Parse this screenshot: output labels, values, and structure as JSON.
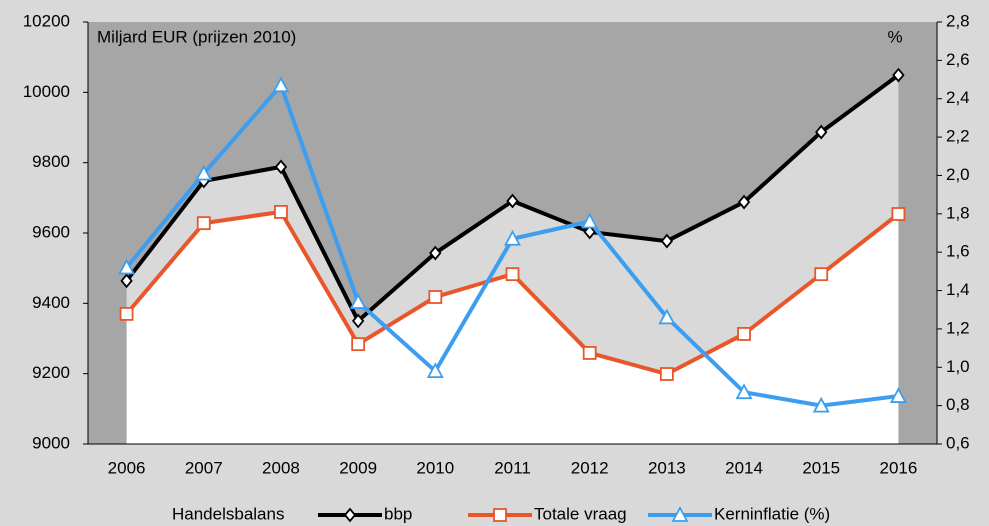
{
  "chart_data": {
    "type": "line",
    "y_label": "Miljard EUR (prijzen 2010)",
    "y2_label": "%",
    "categories": [
      "2006",
      "2007",
      "2008",
      "2009",
      "2010",
      "2011",
      "2012",
      "2013",
      "2014",
      "2015",
      "2016"
    ],
    "series": [
      {
        "name": "Handelsbalans",
        "kind": "area",
        "color": "#d9d9d9",
        "values": [
          94,
          120,
          128,
          66,
          125,
          208,
          344,
          378,
          375,
          404,
          395
        ]
      },
      {
        "name": "bbp",
        "kind": "line",
        "color": "#000000",
        "marker": "diamond",
        "values": [
          9464,
          9748,
          9788,
          9350,
          9543,
          9691,
          9603,
          9577,
          9688,
          9887,
          10049
        ]
      },
      {
        "name": "Totale vraag",
        "kind": "line",
        "color": "#e8562a",
        "marker": "square",
        "fill_below": "#ffffff",
        "values": [
          9370,
          9628,
          9660,
          9284,
          9418,
          9483,
          9259,
          9199,
          9313,
          9483,
          9654
        ]
      },
      {
        "name": "Kerninflatie (%)",
        "kind": "line",
        "color": "#3d9ef0",
        "marker": "triangle",
        "axis": "y2",
        "values": [
          1.52,
          2.01,
          2.47,
          1.34,
          0.98,
          1.67,
          1.76,
          1.26,
          0.87,
          0.8,
          0.85
        ]
      }
    ],
    "ylim": [
      9000,
      10200
    ],
    "yticks": [
      9000,
      9200,
      9400,
      9600,
      9800,
      10000,
      10200
    ],
    "y2lim": [
      0.6,
      2.8
    ],
    "y2ticks": [
      {
        "value": 0.6,
        "label": "0,6"
      },
      {
        "value": 0.8,
        "label": "0,8"
      },
      {
        "value": 1.0,
        "label": "1,0"
      },
      {
        "value": 1.2,
        "label": "1,2"
      },
      {
        "value": 1.4,
        "label": "1,4"
      },
      {
        "value": 1.6,
        "label": "1,6"
      },
      {
        "value": 1.8,
        "label": "1,8"
      },
      {
        "value": 2.0,
        "label": "2,0"
      },
      {
        "value": 2.2,
        "label": "2,2"
      },
      {
        "value": 2.4,
        "label": "2,4"
      },
      {
        "value": 2.6,
        "label": "2,6"
      },
      {
        "value": 2.8,
        "label": "2,8"
      }
    ],
    "grid": false,
    "legend": "bottom"
  }
}
